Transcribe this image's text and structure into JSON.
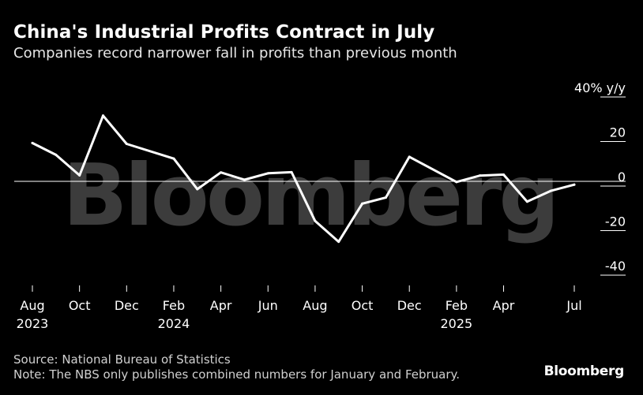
{
  "header": {
    "title": "China's Industrial Profits Contract in July",
    "subtitle": "Companies record narrower fall in profits than previous month"
  },
  "footer": {
    "source": "Source: National Bureau of Statistics",
    "note": "Note: The NBS only publishes combined numbers for January and February.",
    "brand": "Bloomberg"
  },
  "watermark": "Bloomberg",
  "colors": {
    "background": "#000000",
    "line": "#ffffff",
    "watermark": "#3c3c3c",
    "text": "#ffffff"
  },
  "chart_data": {
    "type": "line",
    "title": "China's Industrial Profits Contract in July",
    "subtitle": "Companies record narrower fall in profits than previous month",
    "ylabel": "y/y",
    "y_unit_label": "40% y/y",
    "ylim": [
      -40,
      40
    ],
    "y_ticks": [
      40,
      20,
      0,
      -20,
      -40
    ],
    "y_tick_labels": [
      "40%",
      "20",
      "0",
      "-20",
      "-40"
    ],
    "grid": false,
    "zero_line": true,
    "x_ticks": [
      {
        "date": "2023-08",
        "label": "Aug",
        "year": "2023"
      },
      {
        "date": "2023-10",
        "label": "Oct",
        "year": ""
      },
      {
        "date": "2023-12",
        "label": "Dec",
        "year": ""
      },
      {
        "date": "2024-02",
        "label": "Feb",
        "year": "2024"
      },
      {
        "date": "2024-04",
        "label": "Apr",
        "year": ""
      },
      {
        "date": "2024-06",
        "label": "Jun",
        "year": ""
      },
      {
        "date": "2024-08",
        "label": "Aug",
        "year": ""
      },
      {
        "date": "2024-10",
        "label": "Oct",
        "year": ""
      },
      {
        "date": "2024-12",
        "label": "Dec",
        "year": ""
      },
      {
        "date": "2025-02",
        "label": "Feb",
        "year": "2025"
      },
      {
        "date": "2025-04",
        "label": "Apr",
        "year": ""
      },
      {
        "date": "2025-07",
        "label": "Jul",
        "year": ""
      }
    ],
    "series": [
      {
        "points": [
          {
            "x": "2023-08",
            "y": 17.2
          },
          {
            "x": "2023-09",
            "y": 11.9
          },
          {
            "x": "2023-10",
            "y": 2.7
          },
          {
            "x": "2023-11",
            "y": 29.5
          },
          {
            "x": "2023-12",
            "y": 16.8
          },
          {
            "x": "2024-02",
            "y": 10.2
          },
          {
            "x": "2024-03",
            "y": -3.5
          },
          {
            "x": "2024-04",
            "y": 4.0
          },
          {
            "x": "2024-05",
            "y": 0.7
          },
          {
            "x": "2024-06",
            "y": 3.6
          },
          {
            "x": "2024-07",
            "y": 4.1
          },
          {
            "x": "2024-08",
            "y": -17.8
          },
          {
            "x": "2024-09",
            "y": -27.1
          },
          {
            "x": "2024-10",
            "y": -10.0
          },
          {
            "x": "2024-11",
            "y": -7.3
          },
          {
            "x": "2024-12",
            "y": 11.0
          },
          {
            "x": "2025-02",
            "y": -0.3
          },
          {
            "x": "2025-03",
            "y": 2.6
          },
          {
            "x": "2025-04",
            "y": 3.0
          },
          {
            "x": "2025-05",
            "y": -9.1
          },
          {
            "x": "2025-06",
            "y": -4.3
          },
          {
            "x": "2025-07",
            "y": -1.5
          }
        ]
      }
    ]
  }
}
